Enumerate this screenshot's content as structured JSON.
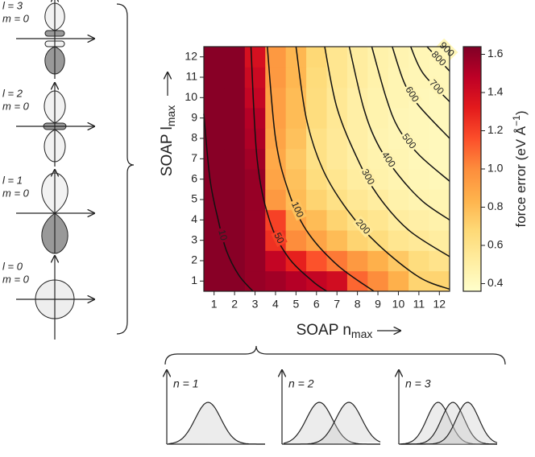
{
  "chart_data": {
    "type": "heatmap",
    "xlabel": {
      "text": "SOAP n",
      "sub": "max"
    },
    "ylabel": {
      "text": "SOAP l",
      "sub": "max"
    },
    "colorbar_label": {
      "text": "force error (eV Å",
      "sup": "−1",
      "end": ")"
    },
    "xlim": [
      0.5,
      12.5
    ],
    "ylim": [
      0.5,
      12.5
    ],
    "xticks": [
      1,
      2,
      3,
      4,
      5,
      6,
      7,
      8,
      9,
      10,
      11,
      12
    ],
    "yticks": [
      1,
      2,
      3,
      4,
      5,
      6,
      7,
      8,
      9,
      10,
      11,
      12
    ],
    "values": [
      [
        1.62,
        1.62,
        1.58,
        1.55,
        1.5,
        1.45,
        1.4,
        1.1,
        1.0,
        0.85,
        0.7,
        0.7
      ],
      [
        1.62,
        1.62,
        1.58,
        1.45,
        1.3,
        1.15,
        1.05,
        0.95,
        0.85,
        0.75,
        0.65,
        0.6
      ],
      [
        1.62,
        1.62,
        1.58,
        1.25,
        1.0,
        0.9,
        0.8,
        0.7,
        0.65,
        0.58,
        0.55,
        0.52
      ],
      [
        1.62,
        1.62,
        1.58,
        1.2,
        0.9,
        0.8,
        0.7,
        0.62,
        0.58,
        0.52,
        0.5,
        0.48
      ],
      [
        1.62,
        1.62,
        1.58,
        0.95,
        0.8,
        0.7,
        0.62,
        0.56,
        0.52,
        0.48,
        0.46,
        0.45
      ],
      [
        1.62,
        1.62,
        1.58,
        0.9,
        0.78,
        0.65,
        0.58,
        0.52,
        0.48,
        0.46,
        0.44,
        0.43
      ],
      [
        1.62,
        1.62,
        1.55,
        0.88,
        0.75,
        0.62,
        0.55,
        0.5,
        0.47,
        0.45,
        0.43,
        0.42
      ],
      [
        1.62,
        1.62,
        1.52,
        0.9,
        0.78,
        0.62,
        0.55,
        0.5,
        0.46,
        0.44,
        0.43,
        0.42
      ],
      [
        1.62,
        1.62,
        1.5,
        0.92,
        0.8,
        0.65,
        0.56,
        0.5,
        0.47,
        0.44,
        0.43,
        0.42
      ],
      [
        1.62,
        1.62,
        1.45,
        0.92,
        0.8,
        0.65,
        0.56,
        0.5,
        0.47,
        0.45,
        0.43,
        0.42
      ],
      [
        1.62,
        1.62,
        1.42,
        0.95,
        0.82,
        0.66,
        0.58,
        0.52,
        0.48,
        0.45,
        0.44,
        0.43
      ],
      [
        1.62,
        1.62,
        1.38,
        0.95,
        0.82,
        0.68,
        0.58,
        0.52,
        0.48,
        0.46,
        0.44,
        0.43
      ]
    ],
    "clim": [
      0.36,
      1.64
    ],
    "colormap": [
      "#ffffcc",
      "#ffeda0",
      "#fed976",
      "#feb24c",
      "#fd8d3c",
      "#fc4e2a",
      "#e31a1c",
      "#bd0026",
      "#800026"
    ],
    "cticks": [
      0.4,
      0.6,
      0.8,
      {
        "value": 1,
        "label": "1.0"
      },
      1.2,
      1.4,
      1.6
    ],
    "contours": [
      {
        "level": 10,
        "x": [
          0.5,
          0.8,
          1.2,
          1.6,
          2.2,
          2.9
        ],
        "y": [
          9.2,
          6,
          4,
          2.5,
          1.3,
          0.5
        ]
      },
      {
        "level": 50,
        "x": [
          2.8,
          3.1,
          3.7,
          4.6,
          5.8,
          6.5
        ],
        "y": [
          12.5,
          7,
          4,
          2.2,
          1,
          0.5
        ]
      },
      {
        "level": 100,
        "x": [
          3.6,
          4,
          4.6,
          5.5,
          7,
          8.8
        ],
        "y": [
          12.5,
          8,
          5.5,
          3.5,
          1.8,
          0.5
        ]
      },
      {
        "level": 200,
        "x": [
          5,
          5.5,
          6.3,
          7.5,
          9,
          11,
          12.5
        ],
        "y": [
          12.5,
          9,
          6.5,
          4.5,
          2.8,
          1.2,
          0.6
        ]
      },
      {
        "level": 300,
        "x": [
          6.4,
          7,
          8,
          9,
          10.5,
          12.5
        ],
        "y": [
          12.5,
          9.5,
          7,
          5.2,
          3.5,
          2.2
        ]
      },
      {
        "level": 400,
        "x": [
          7.6,
          8.3,
          9,
          10,
          11.2,
          12.5
        ],
        "y": [
          12.5,
          9.5,
          7.7,
          6.2,
          4.9,
          4
        ]
      },
      {
        "level": 500,
        "x": [
          8.7,
          9.4,
          10,
          11,
          12.5
        ],
        "y": [
          12.5,
          10,
          8.5,
          7.2,
          5.9
        ]
      },
      {
        "level": 600,
        "x": [
          9.7,
          10.3,
          11,
          12.5
        ],
        "y": [
          12.5,
          10.7,
          9.6,
          8
        ]
      },
      {
        "level": 700,
        "x": [
          10.6,
          11.2,
          12.5
        ],
        "y": [
          12.5,
          11.2,
          9.8
        ]
      },
      {
        "level": 800,
        "x": [
          11.4,
          12.5
        ],
        "y": [
          12.5,
          11.3
        ]
      },
      {
        "level": 900,
        "x": [
          12.2,
          12.5
        ],
        "y": [
          12.5,
          12.2
        ]
      }
    ]
  },
  "orbitals": [
    {
      "l": "l = 3",
      "m": "m = 0"
    },
    {
      "l": "l = 2",
      "m": "m = 0"
    },
    {
      "l": "l = 1",
      "m": "m = 0"
    },
    {
      "l": "l = 0",
      "m": "m = 0"
    }
  ],
  "basis": [
    "n = 1",
    "n = 2",
    "n = 3"
  ]
}
